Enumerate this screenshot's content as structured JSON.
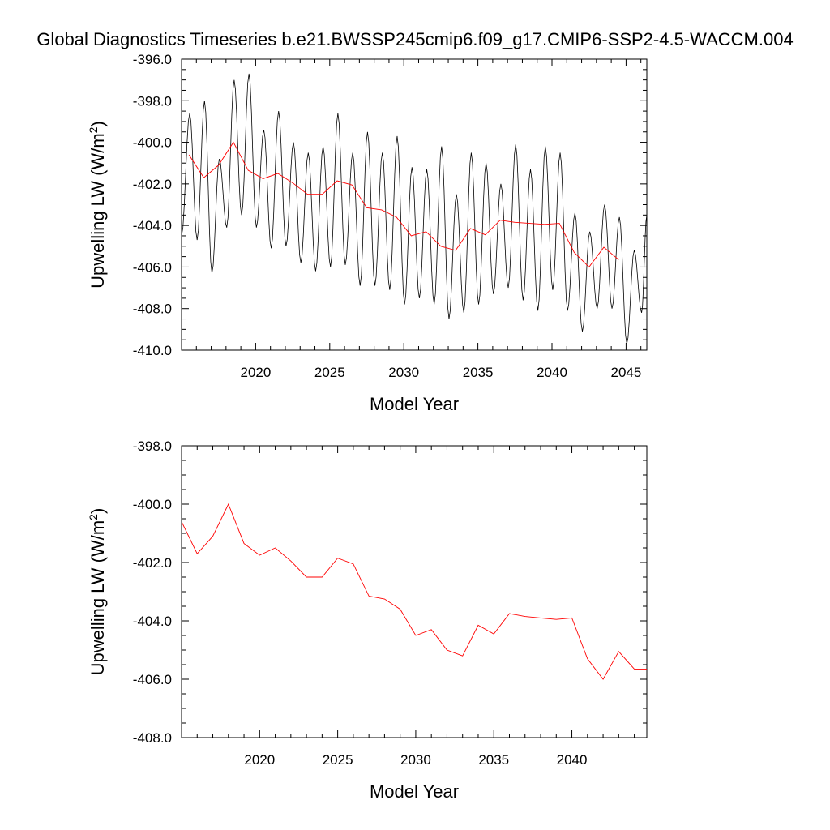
{
  "page": {
    "title": "Global Diagnostics Timeseries b.e21.BWSSP245cmip6.f09_g17.CMIP6-SSP2-4.5-WACCM.004"
  },
  "colors": {
    "monthly_series": "#000000",
    "annual_series": "#ff0000",
    "axes": "#000000"
  },
  "chart_data": [
    {
      "type": "line",
      "xlabel": "Model Year",
      "ylabel_main": "Upwelling LW (W/m",
      "ylabel_sup": "2",
      "ylabel_tail": ")",
      "xlim": [
        2015.0,
        2046.4
      ],
      "ylim": [
        -410.0,
        -396.0
      ],
      "x_ticks": [
        "2020",
        "2025",
        "2030",
        "2035",
        "2040",
        "2045"
      ],
      "y_ticks": [
        "-410.0",
        "-408.0",
        "-406.0",
        "-404.0",
        "-402.0",
        "-400.0",
        "-398.0",
        "-396.0"
      ],
      "series": [
        {
          "style": "monthly",
          "peaks": [
            [
              2015.0,
              -404.5
            ],
            [
              2015.55,
              -398.6
            ],
            [
              2016.05,
              -404.7
            ],
            [
              2016.55,
              -398.0
            ],
            [
              2017.05,
              -406.3
            ],
            [
              2017.55,
              -400.8
            ],
            [
              2018.05,
              -404.1
            ],
            [
              2018.55,
              -397.0
            ],
            [
              2019.05,
              -403.5
            ],
            [
              2019.55,
              -396.7
            ],
            [
              2020.05,
              -404.1
            ],
            [
              2020.55,
              -399.4
            ],
            [
              2021.05,
              -405.1
            ],
            [
              2021.55,
              -398.5
            ],
            [
              2022.05,
              -405.0
            ],
            [
              2022.55,
              -400.0
            ],
            [
              2023.05,
              -405.8
            ],
            [
              2023.55,
              -400.5
            ],
            [
              2024.05,
              -406.2
            ],
            [
              2024.55,
              -400.2
            ],
            [
              2025.05,
              -406.0
            ],
            [
              2025.55,
              -398.6
            ],
            [
              2026.05,
              -405.9
            ],
            [
              2026.55,
              -400.5
            ],
            [
              2027.05,
              -406.9
            ],
            [
              2027.55,
              -399.5
            ],
            [
              2028.05,
              -406.9
            ],
            [
              2028.55,
              -400.5
            ],
            [
              2029.05,
              -407.1
            ],
            [
              2029.55,
              -399.7
            ],
            [
              2030.05,
              -407.8
            ],
            [
              2030.55,
              -401.2
            ],
            [
              2031.05,
              -407.5
            ],
            [
              2031.55,
              -401.3
            ],
            [
              2032.05,
              -407.8
            ],
            [
              2032.55,
              -400.2
            ],
            [
              2033.05,
              -408.5
            ],
            [
              2033.55,
              -402.5
            ],
            [
              2034.05,
              -408.2
            ],
            [
              2034.55,
              -400.5
            ],
            [
              2035.05,
              -407.8
            ],
            [
              2035.55,
              -401.0
            ],
            [
              2036.05,
              -407.3
            ],
            [
              2036.55,
              -402.0
            ],
            [
              2037.05,
              -407.0
            ],
            [
              2037.55,
              -400.1
            ],
            [
              2038.05,
              -407.6
            ],
            [
              2038.55,
              -401.3
            ],
            [
              2039.05,
              -408.1
            ],
            [
              2039.55,
              -400.2
            ],
            [
              2040.05,
              -407.1
            ],
            [
              2040.55,
              -400.5
            ],
            [
              2041.05,
              -408.1
            ],
            [
              2041.55,
              -403.4
            ],
            [
              2042.05,
              -409.1
            ],
            [
              2042.55,
              -404.3
            ],
            [
              2043.05,
              -408.0
            ],
            [
              2043.55,
              -403.0
            ],
            [
              2044.05,
              -408.0
            ],
            [
              2044.55,
              -403.6
            ],
            [
              2045.05,
              -409.7
            ],
            [
              2045.55,
              -405.2
            ],
            [
              2046.05,
              -408.2
            ],
            [
              2046.4,
              -403.5
            ]
          ]
        },
        {
          "style": "annual",
          "x": [
            2015.5,
            2016.5,
            2017.5,
            2018.5,
            2019.5,
            2020.5,
            2021.5,
            2022.5,
            2023.5,
            2024.5,
            2025.5,
            2026.5,
            2027.5,
            2028.5,
            2029.5,
            2030.5,
            2031.5,
            2032.5,
            2033.5,
            2034.5,
            2035.5,
            2036.5,
            2037.5,
            2038.5,
            2039.5,
            2040.5,
            2041.5,
            2042.5,
            2043.5,
            2044.5
          ],
          "y": [
            -400.6,
            -401.7,
            -401.1,
            -400.0,
            -401.35,
            -401.75,
            -401.5,
            -401.95,
            -402.5,
            -402.5,
            -401.85,
            -402.05,
            -403.15,
            -403.25,
            -403.6,
            -404.5,
            -404.3,
            -405.0,
            -405.2,
            -404.15,
            -404.45,
            -403.75,
            -403.85,
            -403.9,
            -403.95,
            -403.9,
            -405.3,
            -406.0,
            -405.05,
            -405.65
          ]
        }
      ]
    },
    {
      "type": "line",
      "xlabel": "Model Year",
      "ylabel_main": "Upwelling LW (W/m",
      "ylabel_sup": "2",
      "ylabel_tail": ")",
      "xlim": [
        2015.0,
        2044.8
      ],
      "ylim": [
        -408.0,
        -398.0
      ],
      "x_ticks": [
        "2020",
        "2025",
        "2030",
        "2035",
        "2040"
      ],
      "y_ticks": [
        "-408.0",
        "-406.0",
        "-404.0",
        "-402.0",
        "-400.0",
        "-398.0"
      ],
      "series": [
        {
          "style": "annual",
          "x": [
            2015.0,
            2016.0,
            2017.0,
            2018.0,
            2019.0,
            2020.0,
            2021.0,
            2022.0,
            2023.0,
            2024.0,
            2025.0,
            2026.0,
            2027.0,
            2028.0,
            2029.0,
            2030.0,
            2031.0,
            2032.0,
            2033.0,
            2034.0,
            2035.0,
            2036.0,
            2037.0,
            2038.0,
            2039.0,
            2040.0,
            2041.0,
            2042.0,
            2043.0,
            2044.0,
            2044.8
          ],
          "y": [
            -400.6,
            -401.7,
            -401.1,
            -400.0,
            -401.35,
            -401.75,
            -401.5,
            -401.95,
            -402.5,
            -402.5,
            -401.85,
            -402.05,
            -403.15,
            -403.25,
            -403.6,
            -404.5,
            -404.3,
            -405.0,
            -405.2,
            -404.15,
            -404.45,
            -403.75,
            -403.85,
            -403.9,
            -403.95,
            -403.9,
            -405.3,
            -406.0,
            -405.05,
            -405.65,
            -405.65
          ]
        }
      ]
    }
  ]
}
